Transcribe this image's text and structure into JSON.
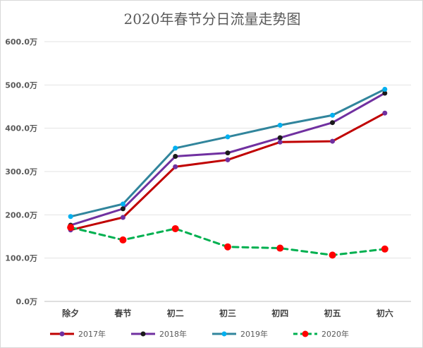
{
  "chart_data": {
    "type": "line",
    "title": "2020年春节分日流量走势图",
    "categories": [
      "除夕",
      "春节",
      "初二",
      "初三",
      "初四",
      "初五",
      "初六"
    ],
    "ylim": [
      0,
      600
    ],
    "yticks": [
      0,
      100,
      200,
      300,
      400,
      500,
      600
    ],
    "ytick_labels": [
      "0.0万",
      "100.0万",
      "200.0万",
      "300.0万",
      "400.0万",
      "500.0万",
      "600.0万"
    ],
    "grid": true,
    "legend_position": "bottom",
    "series": [
      {
        "name": "2017年",
        "values": [
          165,
          194,
          311,
          327,
          368,
          370,
          435
        ],
        "color": "#c00000",
        "marker": "#7030a0",
        "dashed": false
      },
      {
        "name": "2018年",
        "values": [
          176,
          214,
          335,
          343,
          378,
          413,
          481
        ],
        "color": "#7030a0",
        "marker": "#1a1a1a",
        "dashed": false
      },
      {
        "name": "2019年",
        "values": [
          196,
          225,
          354,
          380,
          407,
          430,
          490
        ],
        "color": "#31859c",
        "marker": "#00b0f0",
        "dashed": false
      },
      {
        "name": "2020年",
        "values": [
          171,
          142,
          168,
          126,
          123,
          107,
          121
        ],
        "color": "#00b050",
        "marker": "#ff0000",
        "dashed": true
      }
    ]
  }
}
